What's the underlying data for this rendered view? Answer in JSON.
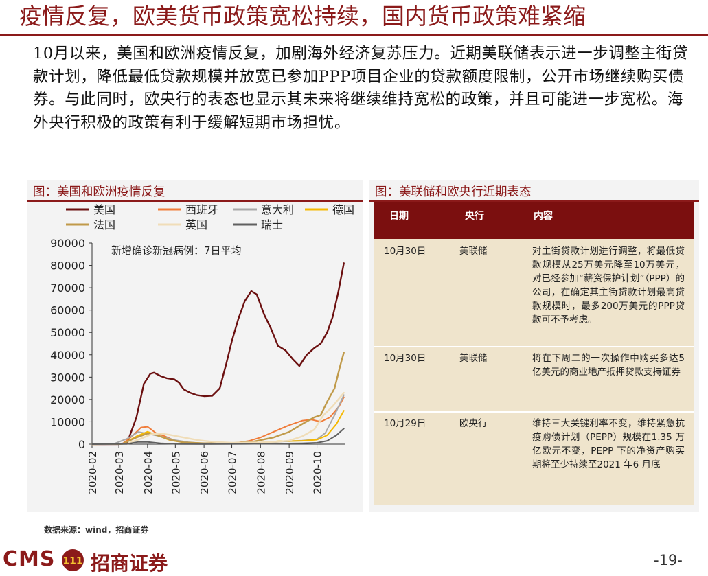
{
  "title": "疫情反复，欧美货币政策宽松持续，国内货币政策难紧缩",
  "paragraph": "10月以来，美国和欧洲疫情反复，加剧海外经济复苏压力。近期美联储表示进一步调整主街贷款计划，降低最低贷款规模并放宽已参加PPP项目企业的贷款额度限制，公开市场继续购买债券。与此同时，欧央行的表态也显示其未来将继续维持宽松的政策，并且可能进一步宽松。海外央行积极的政策有利于缓解短期市场担忧。",
  "left_panel": {
    "title": "图：美国和欧洲疫情反复"
  },
  "right_panel": {
    "title": "图：美联储和欧央行近期表态",
    "headers": [
      "日期",
      "央行",
      "内容"
    ],
    "rows": [
      {
        "date": "10月30日",
        "bank": "美联储",
        "content": "对主街贷款计划进行调整，将最低贷款规模从25万美元降至10万美元，对已经参加“薪资保护计划”（PPP）的公司，在确定其主街贷款计划最高贷款规模时，最多200万美元的PPP贷款可不予考虑。"
      },
      {
        "date": "10月30日",
        "bank": "美联储",
        "content": "将在下周二的一次操作中购买多达5亿美元的商业地产抵押贷款支持证券"
      },
      {
        "date": "10月29日",
        "bank": "欧央行",
        "content": "维持三大关键利率不变，维持紧急抗疫购债计划（PEPP）规模在1.35 万亿欧元不变，PEPP 下的净资产购买期将至少持续至2021 年6 月底"
      }
    ]
  },
  "source": "数据来源：wind，招商证券",
  "logo": {
    "cms": "CMS",
    "badge": "111",
    "cn": "招商证券"
  },
  "page_number": "-19-",
  "chart_data": {
    "type": "line",
    "annotation": "新增确诊新冠病例：7日平均",
    "x_ticks": [
      "2020-02",
      "2020-03",
      "2020-04",
      "2020-05",
      "2020-06",
      "2020-07",
      "2020-08",
      "2020-09",
      "2020-10"
    ],
    "ylim": [
      0,
      90000
    ],
    "y_ticks": [
      0,
      10000,
      20000,
      30000,
      40000,
      50000,
      60000,
      70000,
      80000,
      90000
    ],
    "legend_position": "top",
    "series": [
      {
        "name": "美国",
        "color": "#6b0f0f",
        "width": 2.4,
        "points": [
          [
            "2020-02-01",
            0
          ],
          [
            "2020-03-01",
            20
          ],
          [
            "2020-03-10",
            600
          ],
          [
            "2020-03-20",
            12000
          ],
          [
            "2020-03-28",
            27000
          ],
          [
            "2020-04-04",
            31500
          ],
          [
            "2020-04-08",
            32000
          ],
          [
            "2020-04-15",
            30500
          ],
          [
            "2020-04-22",
            29500
          ],
          [
            "2020-04-30",
            29000
          ],
          [
            "2020-05-05",
            27500
          ],
          [
            "2020-05-10",
            24500
          ],
          [
            "2020-05-17",
            23000
          ],
          [
            "2020-05-24",
            22000
          ],
          [
            "2020-06-01",
            21500
          ],
          [
            "2020-06-10",
            21700
          ],
          [
            "2020-06-18",
            25000
          ],
          [
            "2020-06-25",
            36000
          ],
          [
            "2020-07-01",
            46000
          ],
          [
            "2020-07-08",
            56000
          ],
          [
            "2020-07-15",
            64000
          ],
          [
            "2020-07-22",
            68500
          ],
          [
            "2020-07-28",
            67000
          ],
          [
            "2020-08-05",
            58000
          ],
          [
            "2020-08-12",
            52000
          ],
          [
            "2020-08-20",
            44000
          ],
          [
            "2020-08-28",
            42000
          ],
          [
            "2020-09-05",
            38000
          ],
          [
            "2020-09-12",
            35000
          ],
          [
            "2020-09-20",
            40000
          ],
          [
            "2020-09-28",
            43000
          ],
          [
            "2020-10-05",
            45000
          ],
          [
            "2020-10-12",
            50000
          ],
          [
            "2020-10-18",
            57000
          ],
          [
            "2020-10-24",
            68000
          ],
          [
            "2020-10-30",
            81000
          ]
        ]
      },
      {
        "name": "西班牙",
        "color": "#f07c3a",
        "width": 2,
        "points": [
          [
            "2020-02-01",
            0
          ],
          [
            "2020-03-05",
            200
          ],
          [
            "2020-03-15",
            3500
          ],
          [
            "2020-03-25",
            7500
          ],
          [
            "2020-04-01",
            7800
          ],
          [
            "2020-04-10",
            5000
          ],
          [
            "2020-04-20",
            3500
          ],
          [
            "2020-05-01",
            1500
          ],
          [
            "2020-05-15",
            500
          ],
          [
            "2020-06-01",
            300
          ],
          [
            "2020-06-20",
            350
          ],
          [
            "2020-07-05",
            500
          ],
          [
            "2020-07-20",
            1500
          ],
          [
            "2020-08-01",
            3000
          ],
          [
            "2020-08-15",
            5500
          ],
          [
            "2020-09-01",
            8500
          ],
          [
            "2020-09-15",
            10500
          ],
          [
            "2020-09-25",
            11000
          ],
          [
            "2020-10-05",
            10000
          ],
          [
            "2020-10-15",
            12000
          ],
          [
            "2020-10-25",
            17000
          ],
          [
            "2020-10-30",
            21000
          ]
        ]
      },
      {
        "name": "意大利",
        "color": "#a8a8a8",
        "width": 2,
        "points": [
          [
            "2020-02-01",
            0
          ],
          [
            "2020-02-25",
            200
          ],
          [
            "2020-03-10",
            2500
          ],
          [
            "2020-03-22",
            5500
          ],
          [
            "2020-04-01",
            4700
          ],
          [
            "2020-04-15",
            3500
          ],
          [
            "2020-05-01",
            1800
          ],
          [
            "2020-05-15",
            900
          ],
          [
            "2020-06-01",
            300
          ],
          [
            "2020-07-01",
            200
          ],
          [
            "2020-08-01",
            300
          ],
          [
            "2020-08-25",
            1200
          ],
          [
            "2020-09-15",
            1600
          ],
          [
            "2020-10-01",
            2200
          ],
          [
            "2020-10-10",
            5000
          ],
          [
            "2020-10-20",
            13000
          ],
          [
            "2020-10-30",
            22000
          ]
        ]
      },
      {
        "name": "德国",
        "color": "#f5b800",
        "width": 2,
        "points": [
          [
            "2020-02-01",
            0
          ],
          [
            "2020-03-05",
            100
          ],
          [
            "2020-03-20",
            3500
          ],
          [
            "2020-04-01",
            5600
          ],
          [
            "2020-04-10",
            4200
          ],
          [
            "2020-04-25",
            1800
          ],
          [
            "2020-05-10",
            800
          ],
          [
            "2020-06-01",
            400
          ],
          [
            "2020-07-01",
            400
          ],
          [
            "2020-08-01",
            700
          ],
          [
            "2020-08-20",
            1300
          ],
          [
            "2020-09-15",
            1500
          ],
          [
            "2020-10-01",
            2000
          ],
          [
            "2020-10-12",
            4000
          ],
          [
            "2020-10-22",
            9000
          ],
          [
            "2020-10-30",
            15000
          ]
        ]
      },
      {
        "name": "法国",
        "color": "#c09a4a",
        "width": 2.4,
        "points": [
          [
            "2020-02-01",
            0
          ],
          [
            "2020-03-05",
            200
          ],
          [
            "2020-03-20",
            3000
          ],
          [
            "2020-04-01",
            4800
          ],
          [
            "2020-04-10",
            4200
          ],
          [
            "2020-04-25",
            2000
          ],
          [
            "2020-05-10",
            800
          ],
          [
            "2020-06-01",
            400
          ],
          [
            "2020-07-01",
            500
          ],
          [
            "2020-07-25",
            1200
          ],
          [
            "2020-08-15",
            3000
          ],
          [
            "2020-09-01",
            5500
          ],
          [
            "2020-09-15",
            9000
          ],
          [
            "2020-09-28",
            12000
          ],
          [
            "2020-10-05",
            13000
          ],
          [
            "2020-10-12",
            19000
          ],
          [
            "2020-10-20",
            25000
          ],
          [
            "2020-10-26",
            35000
          ],
          [
            "2020-10-30",
            41000
          ]
        ]
      },
      {
        "name": "英国",
        "color": "#f0ddb8",
        "width": 2.4,
        "points": [
          [
            "2020-02-01",
            0
          ],
          [
            "2020-03-10",
            200
          ],
          [
            "2020-03-25",
            2500
          ],
          [
            "2020-04-05",
            4500
          ],
          [
            "2020-04-15",
            4800
          ],
          [
            "2020-04-25",
            4200
          ],
          [
            "2020-05-10",
            3000
          ],
          [
            "2020-05-25",
            1800
          ],
          [
            "2020-06-10",
            1100
          ],
          [
            "2020-07-01",
            600
          ],
          [
            "2020-08-01",
            800
          ],
          [
            "2020-08-20",
            1100
          ],
          [
            "2020-09-01",
            1600
          ],
          [
            "2020-09-15",
            3500
          ],
          [
            "2020-09-28",
            6500
          ],
          [
            "2020-10-08",
            13000
          ],
          [
            "2020-10-18",
            17000
          ],
          [
            "2020-10-30",
            23000
          ]
        ]
      },
      {
        "name": "瑞士",
        "color": "#606060",
        "width": 2,
        "points": [
          [
            "2020-02-01",
            0
          ],
          [
            "2020-03-10",
            100
          ],
          [
            "2020-03-22",
            1000
          ],
          [
            "2020-04-01",
            1000
          ],
          [
            "2020-04-15",
            400
          ],
          [
            "2020-05-01",
            100
          ],
          [
            "2020-06-01",
            30
          ],
          [
            "2020-07-15",
            120
          ],
          [
            "2020-08-15",
            200
          ],
          [
            "2020-09-15",
            400
          ],
          [
            "2020-10-01",
            600
          ],
          [
            "2020-10-12",
            1500
          ],
          [
            "2020-10-22",
            4000
          ],
          [
            "2020-10-30",
            7000
          ]
        ]
      }
    ]
  }
}
